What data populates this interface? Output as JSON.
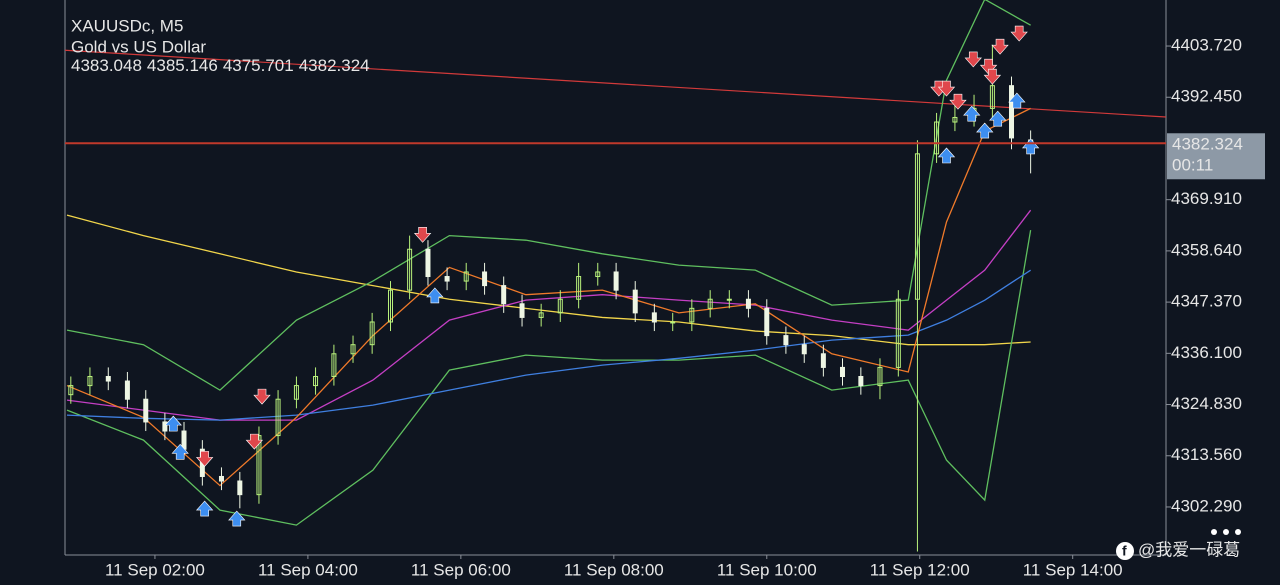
{
  "chart_data": {
    "type": "candlestick",
    "symbol": "XAUUSDc, M5",
    "subtitle": "Gold vs US Dollar",
    "x": [
      0.9,
      1.15,
      1.39,
      1.64,
      1.88,
      2.13,
      2.38,
      2.62,
      2.87,
      3.11,
      3.36,
      3.61,
      3.85,
      4.1,
      4.34,
      4.59,
      4.84,
      5.08,
      5.33,
      5.57,
      5.82,
      6.07,
      6.31,
      6.56,
      6.8,
      7.05,
      7.3,
      7.54,
      7.79,
      8.03,
      8.28,
      8.53,
      8.77,
      9.02,
      9.26,
      9.51,
      9.76,
      10.0,
      10.25,
      10.49,
      10.74,
      10.99,
      11.23,
      11.48,
      11.72,
      11.97,
      12.22,
      12.46,
      12.71,
      12.95,
      13.2,
      13.45
    ],
    "open": [
      4327,
      4329,
      4331,
      4330,
      4326,
      4321,
      4319,
      4315,
      4309,
      4308,
      4305,
      4318,
      4326,
      4329,
      4331,
      4336,
      4338,
      4343,
      4350,
      4359,
      4353,
      4352,
      4354,
      4351,
      4347,
      4344,
      4345,
      4348,
      4353,
      4354,
      4350,
      4345,
      4343,
      4343,
      4346,
      4348,
      4348,
      4346,
      4340,
      4338,
      4336,
      4333,
      4331,
      4329,
      4333,
      4348,
      4380,
      4387,
      4388,
      4390,
      4395,
      4383.048
    ],
    "high": [
      4331,
      4333,
      4333,
      4332,
      4328,
      4323,
      4321,
      4317,
      4311,
      4310,
      4320,
      4328,
      4331,
      4333,
      4338,
      4340,
      4345,
      4352,
      4362,
      4361,
      4355,
      4356,
      4356,
      4353,
      4349,
      4347,
      4350,
      4356,
      4356,
      4356,
      4352,
      4347,
      4345,
      4348,
      4350,
      4350,
      4350,
      4348,
      4342,
      4340,
      4338,
      4335,
      4333,
      4335,
      4350,
      4383,
      4389,
      4391,
      4393,
      4404,
      4397,
      4385.146
    ],
    "low": [
      4325,
      4327,
      4328,
      4324,
      4319,
      4317,
      4313,
      4307,
      4306,
      4302,
      4303,
      4316,
      4324,
      4327,
      4329,
      4334,
      4336,
      4341,
      4348,
      4351,
      4350,
      4350,
      4349,
      4345,
      4342,
      4342,
      4343,
      4346,
      4351,
      4348,
      4343,
      4341,
      4341,
      4341,
      4344,
      4346,
      4344,
      4338,
      4336,
      4334,
      4331,
      4329,
      4327,
      4326,
      4331,
      4292.5,
      4378,
      4385,
      4386,
      4388,
      4381,
      4375.701
    ],
    "close": [
      4329,
      4331,
      4330,
      4326,
      4321,
      4319,
      4315,
      4309,
      4308,
      4305,
      4318,
      4326,
      4329,
      4331,
      4336,
      4338,
      4343,
      4350,
      4359,
      4353,
      4352,
      4354,
      4351,
      4347,
      4344,
      4345,
      4348,
      4353,
      4354,
      4350,
      4345,
      4343,
      4343,
      4346,
      4348,
      4348,
      4346,
      4340,
      4338,
      4336,
      4333,
      4331,
      4329,
      4333,
      4348,
      4380,
      4387,
      4388,
      4390,
      4395,
      4383.5,
      4382.324
    ],
    "up_color": "#b9f27c",
    "down_color": "#eef6e4",
    "indicators": {
      "x": [
        0.85,
        1.85,
        2.85,
        3.85,
        4.85,
        5.85,
        6.85,
        7.85,
        8.85,
        9.85,
        10.85,
        11.85,
        12.35,
        12.85,
        13.45
      ],
      "series": [
        {
          "color": "#f2d64b",
          "values": [
            4366.5,
            4362,
            4358,
            4354,
            4351,
            4348,
            4346,
            4344,
            4343,
            4341,
            4340,
            4338,
            4338,
            4338,
            4338.6
          ]
        },
        {
          "color": "#5fbf5f",
          "values": [
            4341.2,
            4338,
            4328,
            4343.4,
            4352,
            4362,
            4361,
            4358,
            4355.5,
            4354.4,
            4346.7,
            4347.8,
            4396.2,
            4414,
            4408.3
          ]
        },
        {
          "color": "#5fbf5f",
          "values": [
            4323.6,
            4317,
            4301.6,
            4298.3,
            4310.4,
            4332.4,
            4335.7,
            4334.6,
            4334.6,
            4335.7,
            4328,
            4330.2,
            4312.6,
            4303.8,
            4363.2
          ]
        },
        {
          "color": "#c43fc4",
          "values": [
            4325.8,
            4323.6,
            4321.4,
            4321.4,
            4330.2,
            4343.4,
            4347.8,
            4349,
            4347.8,
            4346.7,
            4343.4,
            4341.2,
            4347.8,
            4354.4,
            4367.6
          ]
        },
        {
          "color": "#3f7fe0",
          "values": [
            4322.5,
            4321.8,
            4321.4,
            4322.5,
            4324.7,
            4328,
            4331.3,
            4333.5,
            4335,
            4336.8,
            4339,
            4340.1,
            4343.4,
            4347.8,
            4354.4
          ]
        },
        {
          "color": "#f07a2a",
          "values": [
            4329,
            4322,
            4307,
            4322,
            4340,
            4355,
            4349,
            4350,
            4345,
            4347,
            4336,
            4332,
            4365,
            4385,
            4390
          ]
        }
      ]
    },
    "trendline": {
      "color": "#d23a3a",
      "x": [
        0.824,
        15.22
      ],
      "values": [
        4402.8,
        4388.1
      ]
    },
    "signals": {
      "buy": {
        "color": "#3d8ef0",
        "x": [
          2.24,
          2.33,
          2.65,
          3.07,
          5.66,
          12.35,
          12.68,
          12.85,
          13.02,
          13.27,
          13.45
        ],
        "values": [
          4322.5,
          4316.3,
          4303.8,
          4301.6,
          4350.7,
          4381.5,
          4390.7,
          4387,
          4389.6,
          4393.6,
          4383.5
        ]
      },
      "sell": {
        "color": "#e0474c",
        "x": [
          2.65,
          3.3,
          3.4,
          5.5,
          12.25,
          12.35,
          12.5,
          12.7,
          12.9,
          12.95,
          13.05,
          13.3
        ],
        "values": [
          4311,
          4314.8,
          4324.7,
          4360.3,
          4392.5,
          4392.5,
          4389.6,
          4398.9,
          4397.3,
          4395.1,
          4401.7,
          4404.6
        ]
      }
    },
    "price_line_color": "#c0392b",
    "countdown": "00:11",
    "xlim": [
      0.824,
      15.22
    ],
    "ylim": [
      4291.72,
      4413.85
    ],
    "yticks": [
      {
        "value": 4403.72,
        "label": "4403.720"
      },
      {
        "value": 4392.45,
        "label": "4392.450"
      },
      {
        "value": 4369.91,
        "label": "4369.910"
      },
      {
        "value": 4358.64,
        "label": "4358.640"
      },
      {
        "value": 4347.37,
        "label": "4347.370"
      },
      {
        "value": 4336.1,
        "label": "4336.100"
      },
      {
        "value": 4324.83,
        "label": "4324.830"
      },
      {
        "value": 4313.56,
        "label": "4313.560"
      },
      {
        "value": 4302.29,
        "label": "4302.290"
      }
    ],
    "xticks": [
      {
        "value": 2,
        "label": "11 Sep 02:00"
      },
      {
        "value": 4,
        "label": "11 Sep 04:00"
      },
      {
        "value": 6,
        "label": "11 Sep 06:00"
      },
      {
        "value": 8,
        "label": "11 Sep 08:00"
      },
      {
        "value": 10,
        "label": "11 Sep 10:00"
      },
      {
        "value": 12,
        "label": "11 Sep 12:00"
      },
      {
        "value": 14,
        "label": "11 Sep 14:00"
      }
    ],
    "grid": false
  },
  "watermark": "@我爱一碌葛"
}
